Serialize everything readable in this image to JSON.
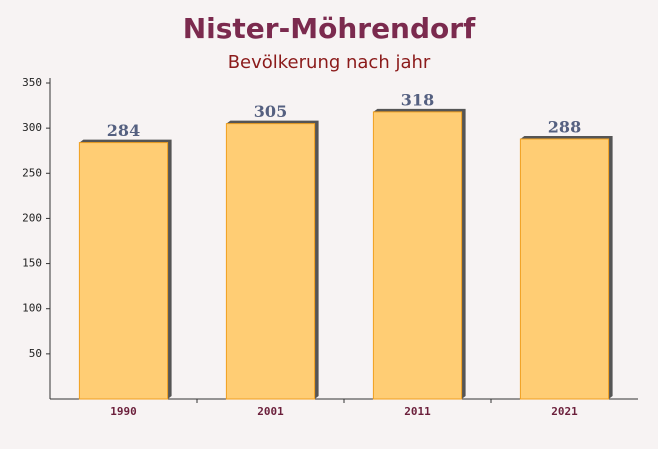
{
  "chart_data": {
    "type": "bar",
    "title": "Nister-Möhrendorf",
    "subtitle": "Bevölkerung nach jahr",
    "categories": [
      "1990",
      "2001",
      "2011",
      "2021"
    ],
    "values": [
      284,
      305,
      318,
      288
    ],
    "color": "#ffc966",
    "ylim": [
      0,
      350
    ],
    "yticks": [
      50,
      100,
      150,
      200,
      250,
      300,
      350
    ],
    "grid": false
  }
}
